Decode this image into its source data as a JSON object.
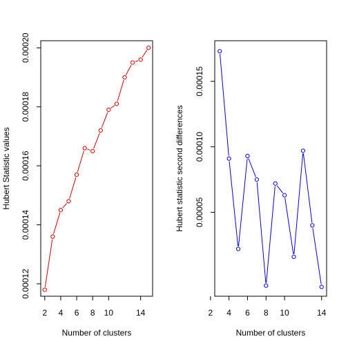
{
  "chart_data": [
    {
      "type": "line",
      "xlabel": "Number of clusters",
      "ylabel": "Hubert Statistic values",
      "x": [
        2,
        3,
        4,
        5,
        6,
        7,
        8,
        9,
        10,
        11,
        12,
        13,
        14,
        15
      ],
      "values": [
        0.000118,
        0.000136,
        0.000145,
        0.000148,
        0.000157,
        0.000166,
        0.000165,
        0.000172,
        0.000179,
        0.000181,
        0.00019,
        0.000195,
        0.000196,
        0.0002
      ],
      "xlim": [
        1.5,
        15.5
      ],
      "ylim": [
        0.0001158,
        0.0002024
      ],
      "xticks": [
        2,
        4,
        6,
        8,
        10,
        14
      ],
      "yticks": [
        0.00012,
        0.00014,
        0.00016,
        0.00018,
        0.0002
      ],
      "ytick_labels": [
        "0.00012",
        "0.00014",
        "0.00016",
        "0.00018",
        "0.00020"
      ],
      "color": "#cc0000",
      "marker": "open-circle",
      "grid": false
    },
    {
      "type": "line",
      "xlabel": "Number of clusters",
      "ylabel": "Hubert statistic second differences",
      "x": [
        3,
        4,
        5,
        6,
        7,
        8,
        9,
        10,
        11,
        12,
        13,
        14
      ],
      "values": [
        0.000173,
        9.1e-05,
        2.2e-05,
        9.3e-05,
        7.5e-05,
        -6e-06,
        7.2e-05,
        6.3e-05,
        1.6e-05,
        9.7e-05,
        4e-05,
        -7e-06
      ],
      "xlim": [
        2.46,
        14.54
      ],
      "ylim": [
        -1.41e-05,
        0.000181
      ],
      "xticks": [
        2,
        4,
        6,
        8,
        10,
        14
      ],
      "yticks": [
        5e-05,
        0.0001,
        0.00015
      ],
      "ytick_labels": [
        "0.00005",
        "0.00010",
        "0.00015"
      ],
      "color": "#0000cc",
      "marker": "open-circle",
      "grid": false
    }
  ]
}
